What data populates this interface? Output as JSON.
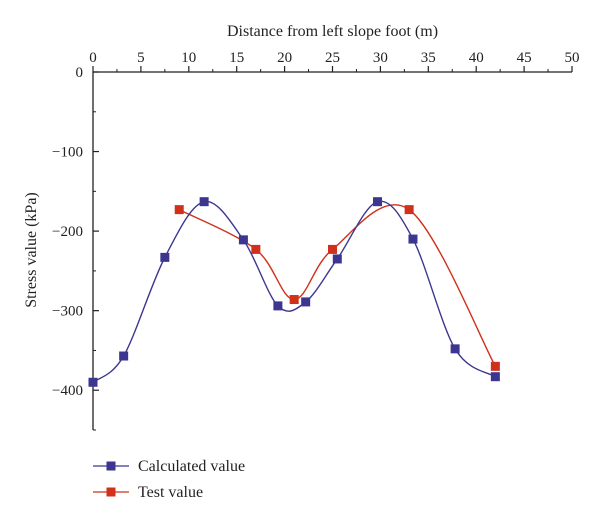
{
  "chart_data": {
    "type": "line",
    "xlabel": "Distance from left slope foot (m)",
    "ylabel": "Stress value (kPa)",
    "xlim": [
      0,
      50
    ],
    "ylim": [
      -450,
      0
    ],
    "x_ticks": [
      0,
      5,
      10,
      15,
      20,
      25,
      30,
      35,
      40,
      45,
      50
    ],
    "y_ticks": [
      0,
      -100,
      -200,
      -300,
      -400
    ],
    "y_tick_labels": [
      "0",
      "−100",
      "−200",
      "−300",
      "−400"
    ],
    "x_axis_position": "top",
    "grid": false,
    "legend_position": "bottom-left",
    "series": [
      {
        "name": "Calculated value",
        "color": "#3c3691",
        "marker": "square",
        "points": [
          [
            0,
            -390
          ],
          [
            3.2,
            -357
          ],
          [
            7.5,
            -233
          ],
          [
            11.6,
            -163
          ],
          [
            15.7,
            -211
          ],
          [
            19.3,
            -294
          ],
          [
            22.2,
            -289
          ],
          [
            25.5,
            -235
          ],
          [
            29.7,
            -163
          ],
          [
            33.4,
            -210
          ],
          [
            37.8,
            -348
          ],
          [
            42,
            -383
          ]
        ]
      },
      {
        "name": "Test value",
        "color": "#d1301b",
        "marker": "square",
        "points": [
          [
            9,
            -173
          ],
          [
            17,
            -223
          ],
          [
            21,
            -286
          ],
          [
            25,
            -223
          ],
          [
            33,
            -173
          ],
          [
            42,
            -370
          ]
        ]
      }
    ]
  }
}
